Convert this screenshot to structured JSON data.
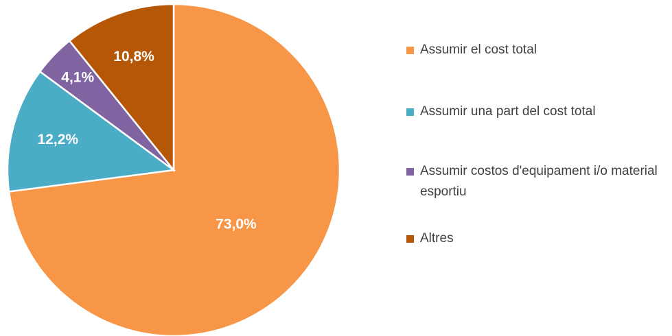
{
  "chart_data": {
    "type": "pie",
    "categories": [
      "Assumir el cost total",
      "Assumir una part del cost total",
      "Assumir costos d'equipament i/o material esportiu",
      "Altres"
    ],
    "values": [
      73.0,
      12.2,
      4.1,
      10.8
    ],
    "value_labels": [
      "73,0%",
      "12,2%",
      "4,1%",
      "10,8%"
    ],
    "colors": [
      "#f79646",
      "#4bacc6",
      "#8064a2",
      "#b65708"
    ],
    "legend": "right"
  }
}
